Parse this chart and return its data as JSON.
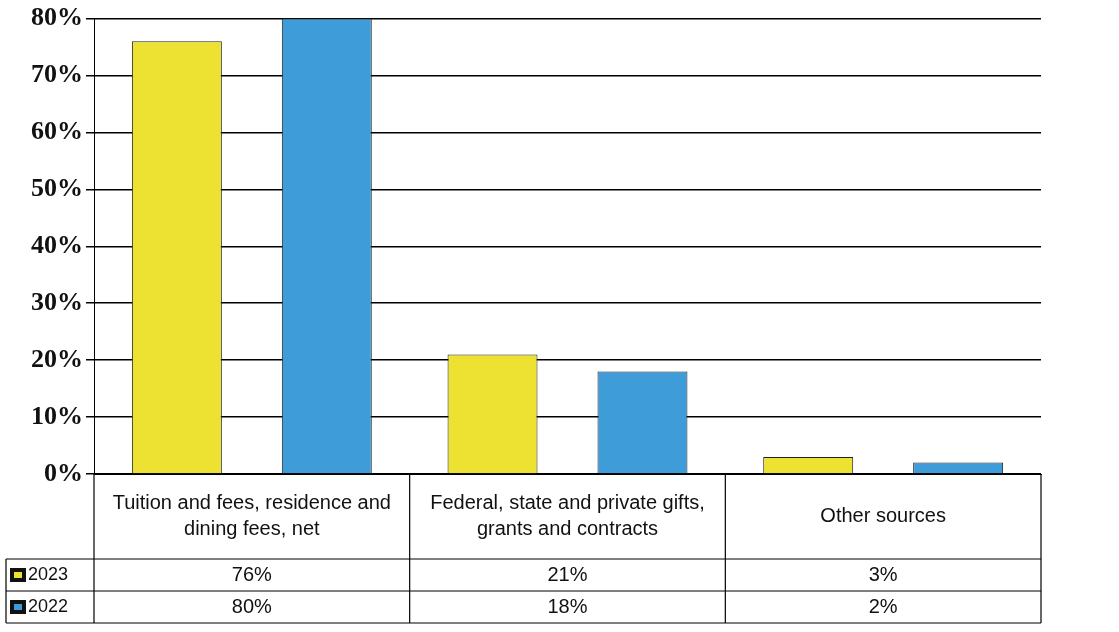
{
  "chart_data": {
    "type": "bar",
    "categories": [
      "Tuition and fees, residence and dining fees, net",
      "Federal, state and private gifts, grants and contracts",
      "Other sources"
    ],
    "series": [
      {
        "name": "2023",
        "color": "#ede232",
        "values": [
          76,
          21,
          3
        ],
        "value_labels": [
          "76%",
          "21%",
          "3%"
        ]
      },
      {
        "name": "2022",
        "color": "#3e9cd8",
        "values": [
          80,
          18,
          2
        ],
        "value_labels": [
          "80%",
          "18%",
          "2%"
        ]
      }
    ],
    "ylim": [
      0,
      80
    ],
    "yticks": [
      {
        "value": 0,
        "label": "0%"
      },
      {
        "value": 10,
        "label": "10%"
      },
      {
        "value": 20,
        "label": "20%"
      },
      {
        "value": 30,
        "label": "30%"
      },
      {
        "value": 40,
        "label": "40%"
      },
      {
        "value": 50,
        "label": "50%"
      },
      {
        "value": 60,
        "label": "60%"
      },
      {
        "value": 70,
        "label": "70%"
      },
      {
        "value": 80,
        "label": "80%"
      }
    ],
    "grid": "y",
    "legend": "bottom left"
  }
}
